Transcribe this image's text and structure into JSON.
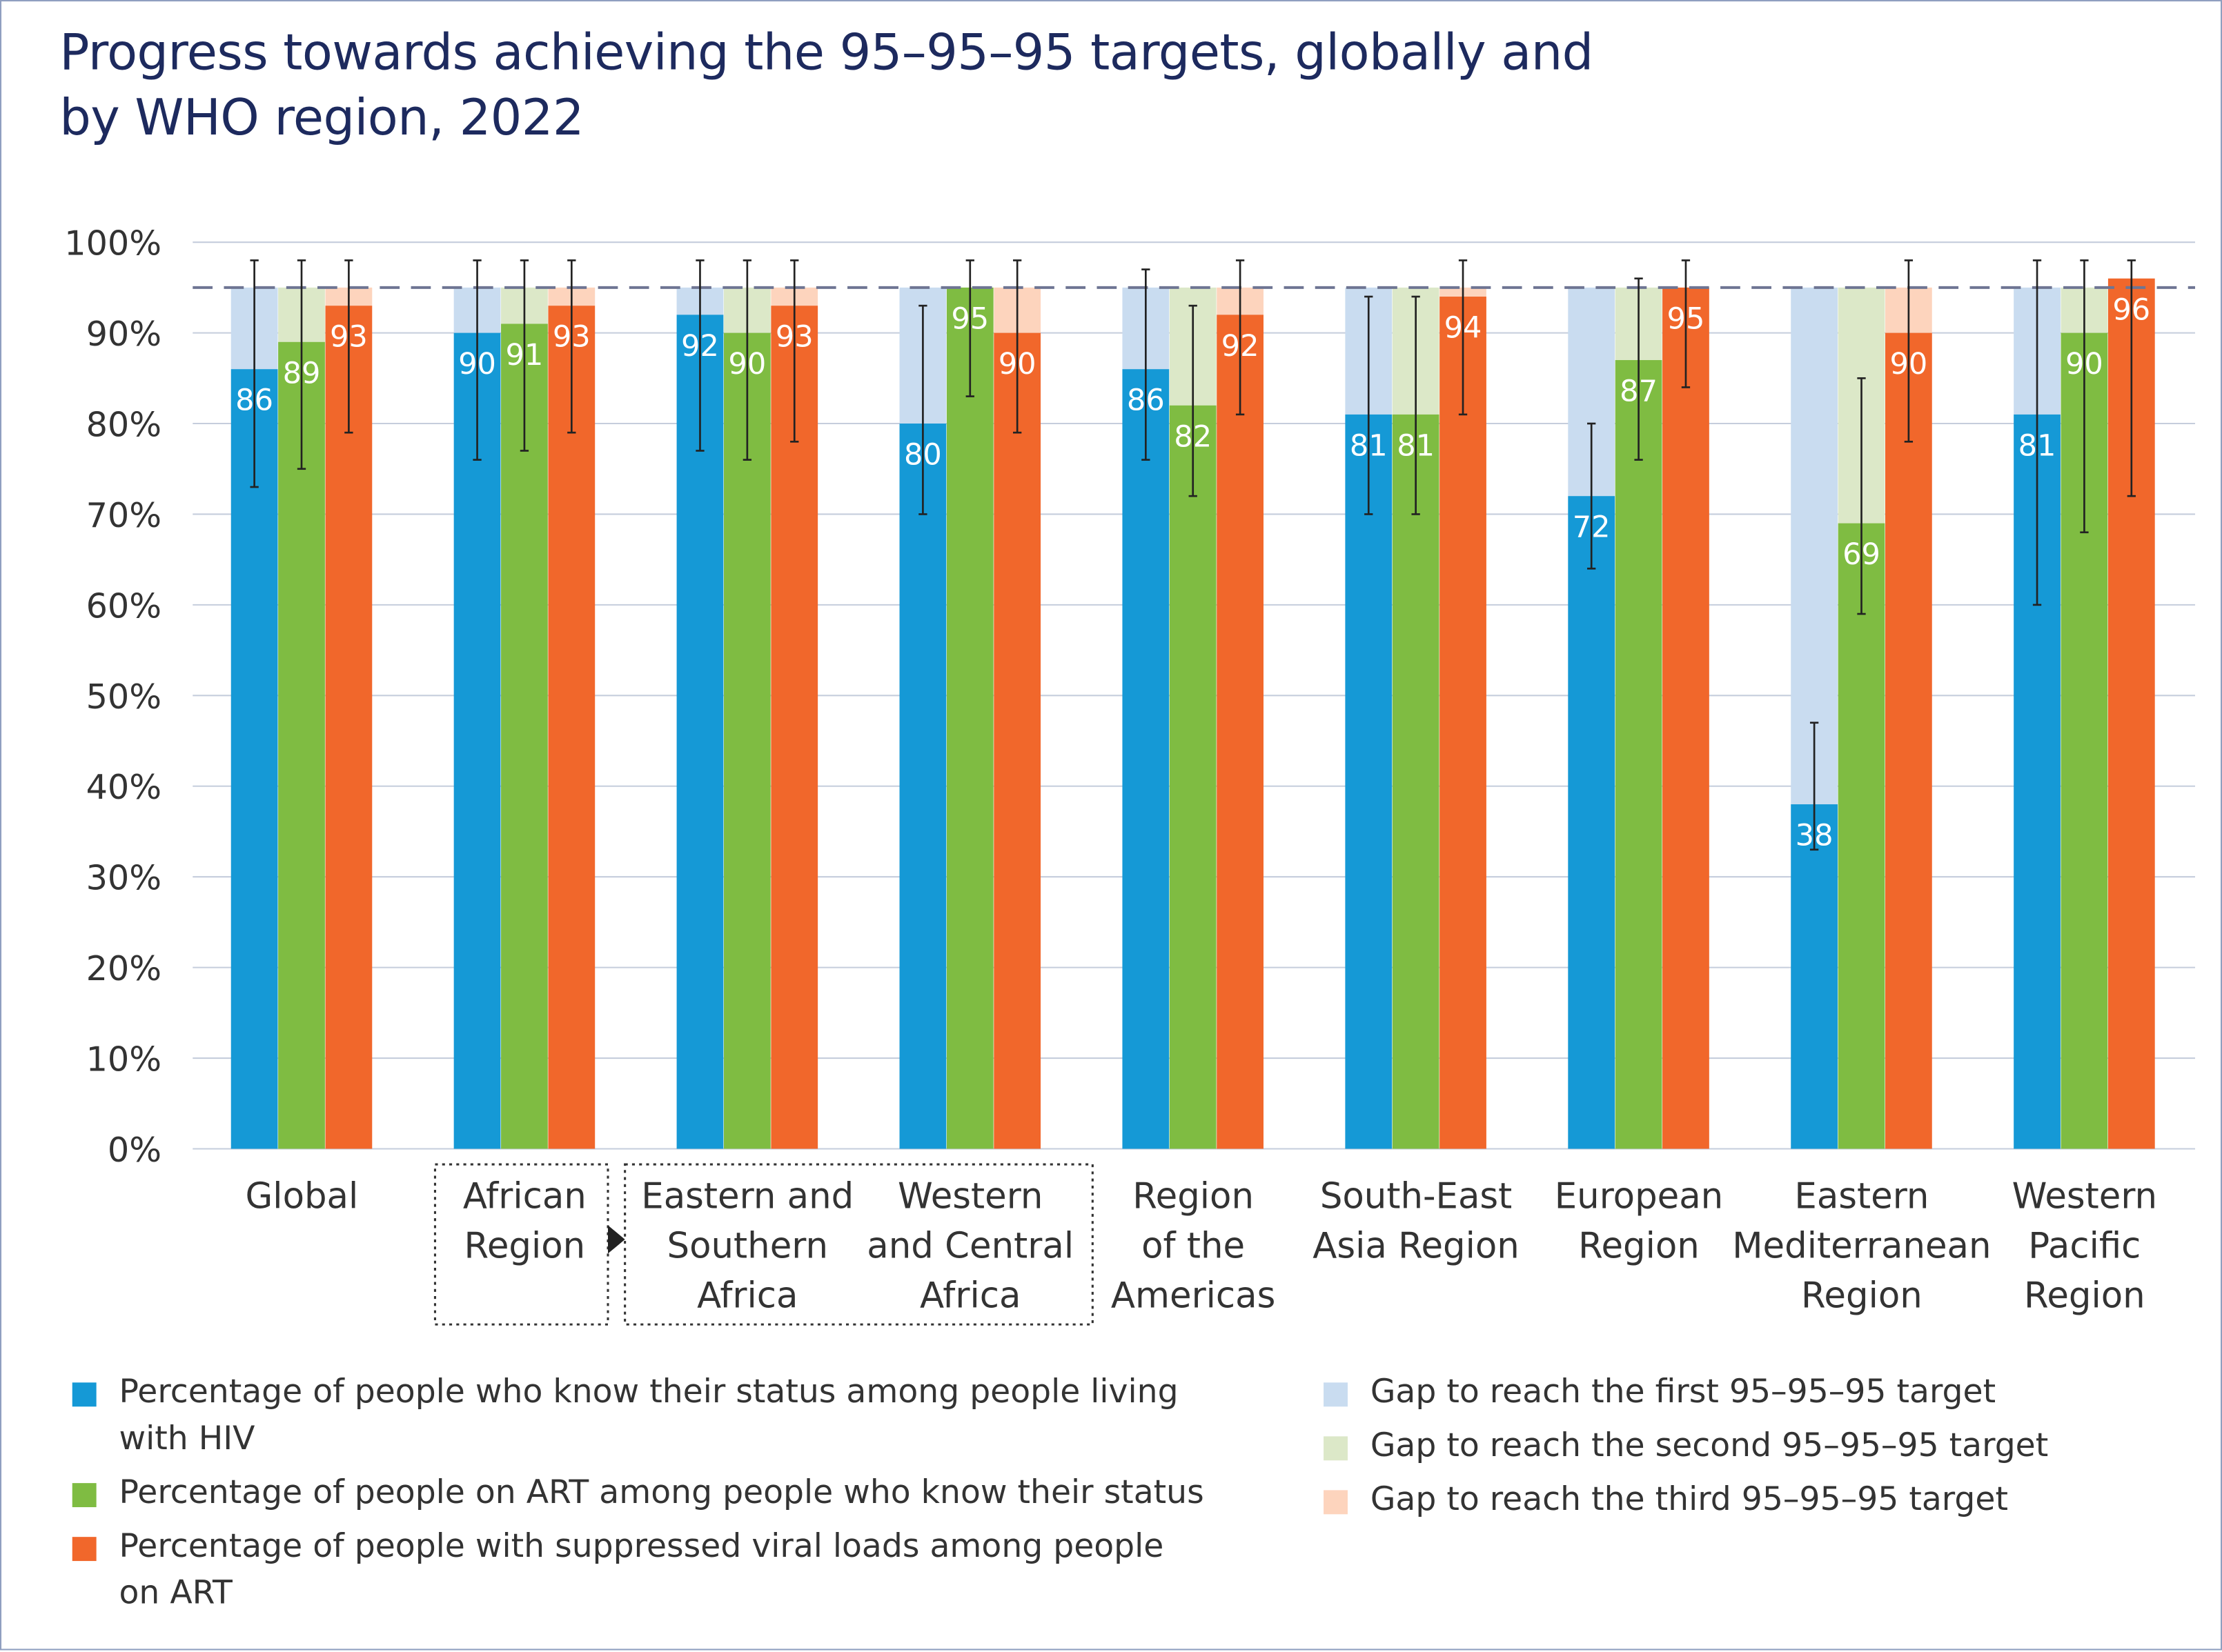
{
  "title": "Progress towards achieving the 95–95–95 targets, globally and by WHO region, 2022",
  "chart_data": {
    "type": "bar",
    "title": "Progress towards achieving the 95–95–95 targets, globally and by WHO region, 2022",
    "ylim": [
      0,
      100
    ],
    "yticks": [
      "0%",
      "10%",
      "20%",
      "30%",
      "40%",
      "50%",
      "60%",
      "70%",
      "80%",
      "90%",
      "100%"
    ],
    "grid": true,
    "target": 95,
    "categories": [
      "Global",
      "African\nRegion",
      "Eastern and\nSouthern\nAfrica",
      "Western\nand Central\nAfrica",
      "Region\nof the\nAmericas",
      "South-East\nAsia Region",
      "European\nRegion",
      "Eastern\nMediterranean\nRegion",
      "Western\nPacific\nRegion"
    ],
    "series": [
      {
        "name": "Percentage of people who know their status among people living with HIV",
        "color": "#1599d6",
        "gap_color": "#c9dcf0",
        "values": [
          86,
          90,
          92,
          80,
          86,
          81,
          72,
          38,
          81
        ],
        "error_low": [
          73,
          76,
          77,
          70,
          76,
          70,
          64,
          33,
          60
        ],
        "error_high": [
          98,
          98,
          98,
          93,
          97,
          94,
          80,
          47,
          98
        ]
      },
      {
        "name": "Percentage of people on ART among people who know their status",
        "color": "#7fbc42",
        "gap_color": "#dce8c8",
        "values": [
          89,
          91,
          90,
          95,
          82,
          81,
          87,
          69,
          90
        ],
        "error_low": [
          75,
          77,
          76,
          83,
          72,
          70,
          76,
          59,
          68
        ],
        "error_high": [
          98,
          98,
          98,
          98,
          93,
          94,
          96,
          85,
          98
        ]
      },
      {
        "name": "Percentage of people with suppressed viral loads among people on ART",
        "color": "#f1672b",
        "gap_color": "#fdd4bd",
        "values": [
          93,
          93,
          93,
          90,
          92,
          94,
          95,
          90,
          96
        ],
        "error_low": [
          79,
          79,
          78,
          79,
          81,
          81,
          84,
          78,
          72
        ],
        "error_high": [
          98,
          98,
          98,
          98,
          98,
          98,
          98,
          98,
          98
        ]
      }
    ],
    "legend_placement": "bottom"
  },
  "legend": {
    "left": [
      {
        "label": "Percentage of people who know their status among people living with HIV",
        "color": "#1599d6"
      },
      {
        "label": "Percentage of people on ART among people who know their status",
        "color": "#7fbc42"
      },
      {
        "label": "Percentage of people with suppressed viral loads among people on ART",
        "color": "#f1672b"
      }
    ],
    "right": [
      {
        "label": "Gap to reach the first 95–95–95 target",
        "color": "#c9dcf0"
      },
      {
        "label": "Gap to reach the second 95–95–95 target",
        "color": "#dce8c8"
      },
      {
        "label": "Gap to reach the third 95–95–95 target",
        "color": "#fdd4bd"
      }
    ]
  }
}
